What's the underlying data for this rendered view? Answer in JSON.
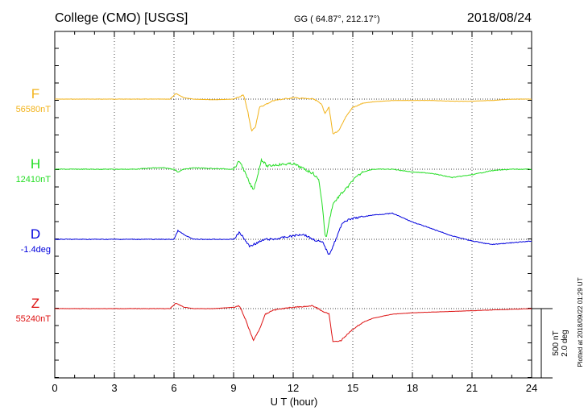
{
  "header": {
    "station": "College (CMO)  [USGS]",
    "coords": "GG ( 64.87°, 212.17°)",
    "date": "2018/08/24"
  },
  "footer": {
    "plotted": "Plotted at 2018/09/22 01:29 UT"
  },
  "chart_data": {
    "type": "line",
    "xlabel": "U T (hour)",
    "xlim": [
      0,
      24
    ],
    "xticks": [
      "0",
      "3",
      "6",
      "9",
      "12",
      "15",
      "18",
      "21",
      "24"
    ],
    "grid": true,
    "scale_bar": {
      "label_nt": "500 nT",
      "label_deg": "2.0 deg"
    },
    "series": [
      {
        "name": "F",
        "baseline_label": "56580nT",
        "color": "#f2b31a",
        "unit": "nT",
        "points": [
          [
            0,
            0
          ],
          [
            1,
            0
          ],
          [
            2,
            0
          ],
          [
            3,
            0
          ],
          [
            4,
            0
          ],
          [
            5,
            0
          ],
          [
            5.8,
            0
          ],
          [
            6.1,
            -40
          ],
          [
            6.5,
            -10
          ],
          [
            7,
            0
          ],
          [
            8,
            5
          ],
          [
            9,
            0
          ],
          [
            9.2,
            -10
          ],
          [
            9.5,
            -30
          ],
          [
            9.7,
            80
          ],
          [
            9.9,
            230
          ],
          [
            10.1,
            200
          ],
          [
            10.3,
            60
          ],
          [
            10.6,
            40
          ],
          [
            11,
            10
          ],
          [
            12,
            -10
          ],
          [
            13,
            0
          ],
          [
            13.4,
            30
          ],
          [
            13.6,
            100
          ],
          [
            13.8,
            60
          ],
          [
            14.0,
            250
          ],
          [
            14.3,
            230
          ],
          [
            14.6,
            140
          ],
          [
            15,
            60
          ],
          [
            15.5,
            30
          ],
          [
            16,
            20
          ],
          [
            17,
            10
          ],
          [
            18,
            10
          ],
          [
            19,
            10
          ],
          [
            20,
            15
          ],
          [
            21,
            15
          ],
          [
            22,
            10
          ],
          [
            23,
            0
          ],
          [
            24,
            0
          ]
        ]
      },
      {
        "name": "H",
        "baseline_label": "12410nT",
        "color": "#22dd22",
        "unit": "nT",
        "points": [
          [
            0,
            0
          ],
          [
            1,
            0
          ],
          [
            2,
            0
          ],
          [
            3,
            0
          ],
          [
            4,
            0
          ],
          [
            5,
            -10
          ],
          [
            5.5,
            -10
          ],
          [
            6,
            0
          ],
          [
            6.2,
            20
          ],
          [
            6.5,
            0
          ],
          [
            7,
            -10
          ],
          [
            8,
            -5
          ],
          [
            9,
            0
          ],
          [
            9.3,
            -60
          ],
          [
            9.5,
            0
          ],
          [
            9.8,
            100
          ],
          [
            10.0,
            150
          ],
          [
            10.2,
            50
          ],
          [
            10.4,
            -70
          ],
          [
            10.7,
            -20
          ],
          [
            11,
            -30
          ],
          [
            12,
            -40
          ],
          [
            13,
            30
          ],
          [
            13.3,
            80
          ],
          [
            13.5,
            300
          ],
          [
            13.6,
            480
          ],
          [
            13.7,
            480
          ],
          [
            13.8,
            380
          ],
          [
            14,
            250
          ],
          [
            14.4,
            180
          ],
          [
            14.8,
            120
          ],
          [
            15,
            80
          ],
          [
            15.5,
            20
          ],
          [
            16,
            0
          ],
          [
            17,
            0
          ],
          [
            18,
            20
          ],
          [
            19,
            30
          ],
          [
            20,
            60
          ],
          [
            21,
            40
          ],
          [
            22,
            10
          ],
          [
            23,
            0
          ],
          [
            24,
            0
          ]
        ]
      },
      {
        "name": "D",
        "baseline_label": "-1.4deg",
        "color": "#0000dd",
        "unit": "deg",
        "points": [
          [
            0,
            0
          ],
          [
            1,
            0
          ],
          [
            2,
            0
          ],
          [
            3,
            0
          ],
          [
            4,
            0
          ],
          [
            5,
            0
          ],
          [
            6,
            0
          ],
          [
            6.2,
            -0.25
          ],
          [
            6.6,
            -0.1
          ],
          [
            7,
            0
          ],
          [
            8,
            0
          ],
          [
            9,
            0
          ],
          [
            9.3,
            -0.2
          ],
          [
            9.8,
            0.2
          ],
          [
            10.2,
            0.1
          ],
          [
            10.6,
            0
          ],
          [
            11,
            0
          ],
          [
            12,
            -0.1
          ],
          [
            12.5,
            -0.15
          ],
          [
            13,
            0
          ],
          [
            13.5,
            0.1
          ],
          [
            13.8,
            0.45
          ],
          [
            14.0,
            0.2
          ],
          [
            14.5,
            -0.5
          ],
          [
            15,
            -0.6
          ],
          [
            16,
            -0.7
          ],
          [
            17,
            -0.75
          ],
          [
            18,
            -0.5
          ],
          [
            19,
            -0.3
          ],
          [
            20,
            -0.1
          ],
          [
            21,
            0.05
          ],
          [
            22,
            0.15
          ],
          [
            23,
            0.1
          ],
          [
            24,
            0.05
          ]
        ]
      },
      {
        "name": "Z",
        "baseline_label": "55240nT",
        "color": "#dd1111",
        "unit": "nT",
        "points": [
          [
            0,
            0
          ],
          [
            1,
            0
          ],
          [
            2,
            0
          ],
          [
            3,
            0
          ],
          [
            4,
            0
          ],
          [
            5,
            0
          ],
          [
            5.8,
            0
          ],
          [
            6.1,
            -40
          ],
          [
            6.5,
            -10
          ],
          [
            7,
            0
          ],
          [
            8,
            0
          ],
          [
            9,
            -10
          ],
          [
            9.3,
            -20
          ],
          [
            9.6,
            80
          ],
          [
            10,
            230
          ],
          [
            10.3,
            150
          ],
          [
            10.6,
            40
          ],
          [
            11,
            10
          ],
          [
            12,
            -10
          ],
          [
            13,
            -20
          ],
          [
            13.5,
            20
          ],
          [
            13.8,
            40
          ],
          [
            14.0,
            240
          ],
          [
            14.4,
            230
          ],
          [
            15,
            150
          ],
          [
            15.5,
            100
          ],
          [
            16,
            70
          ],
          [
            17,
            40
          ],
          [
            18,
            30
          ],
          [
            19,
            25
          ],
          [
            20,
            20
          ],
          [
            21,
            15
          ],
          [
            22,
            10
          ],
          [
            23,
            5
          ],
          [
            24,
            0
          ]
        ]
      }
    ]
  }
}
